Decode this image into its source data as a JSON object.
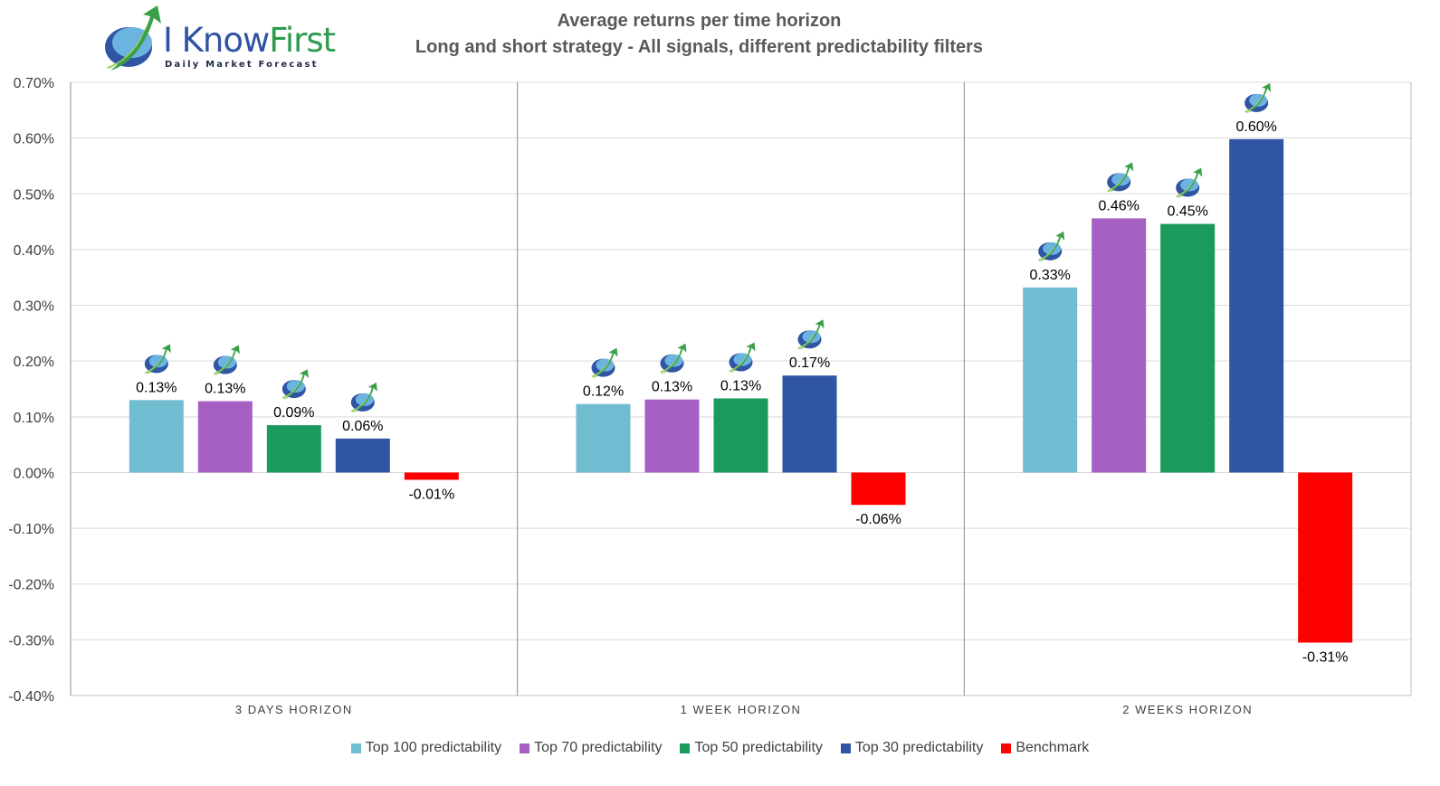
{
  "logo": {
    "word1": "I Know",
    "word2": "First",
    "subtitle": "Daily Market Forecast"
  },
  "chart_data": {
    "type": "bar",
    "title": "Average returns per time horizon",
    "subtitle": "Long and short strategy - All signals, different predictability filters",
    "categories": [
      "3 DAYS HORIZON",
      "1 WEEK HORIZON",
      "2 WEEKS HORIZON"
    ],
    "series": [
      {
        "name": "Top 100 predictability",
        "color": "#70bdd1",
        "values": [
          0.13,
          0.123,
          0.332
        ],
        "labels": [
          "0.13%",
          "0.12%",
          "0.33%"
        ]
      },
      {
        "name": "Top 70 predictability",
        "color": "#a65fc2",
        "values": [
          0.128,
          0.131,
          0.456
        ],
        "labels": [
          "0.13%",
          "0.13%",
          "0.46%"
        ]
      },
      {
        "name": "Top 50 predictability",
        "color": "#1a9a5c",
        "values": [
          0.085,
          0.133,
          0.446
        ],
        "labels": [
          "0.09%",
          "0.13%",
          "0.45%"
        ]
      },
      {
        "name": "Top 30 predictability",
        "color": "#2f55a4",
        "values": [
          0.061,
          0.174,
          0.598
        ],
        "labels": [
          "0.06%",
          "0.17%",
          "0.60%"
        ]
      },
      {
        "name": "Benchmark",
        "color": "#ff0000",
        "values": [
          -0.013,
          -0.058,
          -0.305
        ],
        "labels": [
          "-0.01%",
          "-0.06%",
          "-0.31%"
        ]
      }
    ],
    "ylim": [
      -0.4,
      0.7
    ],
    "yticks": [
      "0.70%",
      "0.60%",
      "0.50%",
      "0.40%",
      "0.30%",
      "0.20%",
      "0.10%",
      "0.00%",
      "-0.10%",
      "-0.20%",
      "-0.30%",
      "-0.40%"
    ],
    "grid": true,
    "legend": "bottom",
    "logo_marker": "on positive bars"
  }
}
